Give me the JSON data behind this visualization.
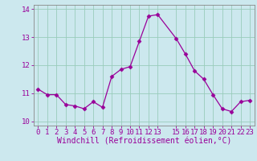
{
  "x": [
    0,
    1,
    2,
    3,
    4,
    5,
    6,
    7,
    8,
    9,
    10,
    11,
    12,
    13,
    15,
    16,
    17,
    18,
    19,
    20,
    21,
    22,
    23
  ],
  "y": [
    11.15,
    10.95,
    10.95,
    10.6,
    10.55,
    10.45,
    10.7,
    10.5,
    11.6,
    11.85,
    11.95,
    12.85,
    13.75,
    13.8,
    12.95,
    12.4,
    11.8,
    11.5,
    10.95,
    10.45,
    10.35,
    10.7,
    10.75
  ],
  "line_color": "#990099",
  "marker": "D",
  "marker_size": 2.5,
  "bg_color": "#cce8ee",
  "grid_color": "#99ccbb",
  "xlabel": "Windchill (Refroidissement éolien,°C)",
  "xlabel_color": "#990099",
  "xlim": [
    -0.5,
    23.5
  ],
  "ylim": [
    9.85,
    14.15
  ],
  "yticks": [
    10,
    11,
    12,
    13,
    14
  ],
  "xticks": [
    0,
    1,
    2,
    3,
    4,
    5,
    6,
    7,
    8,
    9,
    10,
    11,
    12,
    13,
    15,
    16,
    17,
    18,
    19,
    20,
    21,
    22,
    23
  ],
  "tick_color": "#990099",
  "tick_fontsize": 6.5,
  "xlabel_fontsize": 7.0,
  "spine_color": "#888888"
}
